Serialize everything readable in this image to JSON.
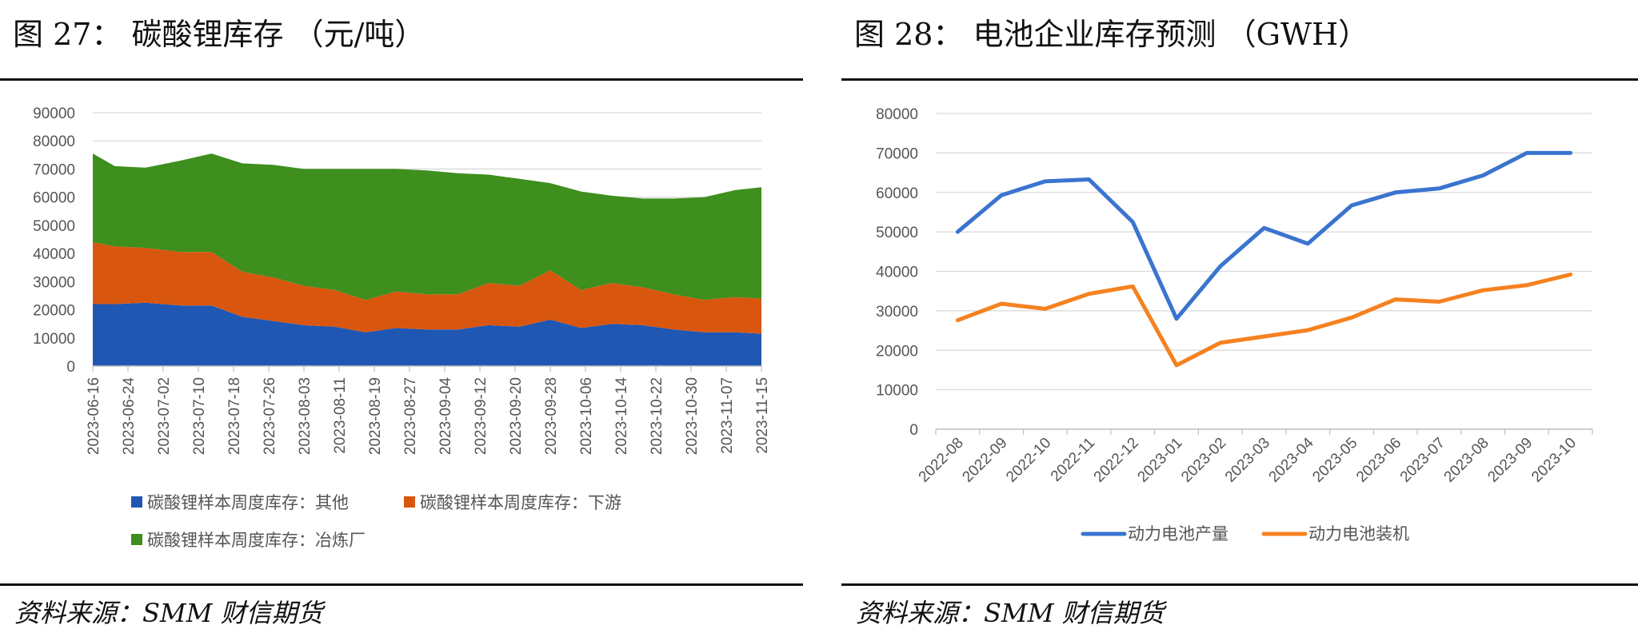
{
  "left": {
    "title": "图 27： 碳酸锂库存 （元/吨）",
    "source": "资料来源：SMM 财信期货",
    "chart_data": {
      "type": "area",
      "stacked": true,
      "title": "碳酸锂库存 （元/吨）",
      "ylim": [
        0,
        90000
      ],
      "yticks": [
        0,
        10000,
        20000,
        30000,
        40000,
        50000,
        60000,
        70000,
        80000,
        90000
      ],
      "ytick_labels": [
        "0",
        "10000",
        "20000",
        "30000",
        "40000",
        "50000",
        "60000",
        "70000",
        "80000",
        "90000"
      ],
      "categories": [
        "2023-06-16",
        "2023-06-24",
        "2023-07-02",
        "2023-07-10",
        "2023-07-18",
        "2023-07-26",
        "2023-08-03",
        "2023-08-11",
        "2023-08-19",
        "2023-08-27",
        "2023-09-04",
        "2023-09-12",
        "2023-09-20",
        "2023-09-28",
        "2023-10-06",
        "2023-10-14",
        "2023-10-22",
        "2023-10-30",
        "2023-11-07",
        "2023-11-15"
      ],
      "x": [
        "2023-06-16",
        "2023-06-21",
        "2023-06-28",
        "2023-07-06",
        "2023-07-13",
        "2023-07-20",
        "2023-07-27",
        "2023-08-03",
        "2023-08-10",
        "2023-08-17",
        "2023-08-24",
        "2023-08-31",
        "2023-09-07",
        "2023-09-14",
        "2023-09-21",
        "2023-09-28",
        "2023-10-05",
        "2023-10-12",
        "2023-10-19",
        "2023-10-26",
        "2023-11-02",
        "2023-11-09",
        "2023-11-15"
      ],
      "series": [
        {
          "name": "碳酸锂样本周度库存：其他",
          "color": "#1f57b3",
          "values": [
            22000,
            22000,
            22500,
            21500,
            21500,
            17500,
            16000,
            14500,
            14000,
            12000,
            13500,
            13000,
            13000,
            14500,
            14000,
            16500,
            13500,
            15000,
            14500,
            13000,
            12000,
            12000,
            11500
          ]
        },
        {
          "name": "碳酸锂样本周度库存：下游",
          "color": "#d9560f",
          "values": [
            22000,
            20500,
            19500,
            19000,
            19000,
            16000,
            15500,
            14000,
            13000,
            11500,
            13000,
            12500,
            12500,
            15000,
            14500,
            17500,
            13500,
            14500,
            13500,
            12500,
            11500,
            12500,
            12500
          ]
        },
        {
          "name": "碳酸锂样本周度库存：冶炼厂",
          "color": "#3e8f1d",
          "values": [
            31500,
            28500,
            28500,
            32500,
            35000,
            38500,
            40000,
            41500,
            43000,
            46500,
            43500,
            44000,
            43000,
            38500,
            38000,
            31000,
            35000,
            31000,
            31500,
            34000,
            36500,
            38000,
            39500
          ]
        }
      ]
    }
  },
  "right": {
    "title": "图 28： 电池企业库存预测 （GWH）",
    "source": "资料来源：SMM 财信期货",
    "chart_data": {
      "type": "line",
      "title": "电池企业库存预测 （GWH）",
      "ylim": [
        0,
        80000
      ],
      "yticks": [
        0,
        10000,
        20000,
        30000,
        40000,
        50000,
        60000,
        70000,
        80000
      ],
      "ytick_labels": [
        "0",
        "10000",
        "20000",
        "30000",
        "40000",
        "50000",
        "60000",
        "70000",
        "80000"
      ],
      "categories": [
        "2022-08",
        "2022-09",
        "2022-10",
        "2022-11",
        "2022-12",
        "2023-01",
        "2023-02",
        "2023-03",
        "2023-04",
        "2023-05",
        "2023-06",
        "2023-07",
        "2023-08",
        "2023-09",
        "2023-10"
      ],
      "series": [
        {
          "name": "动力电池产量",
          "color": "#3a74cf",
          "values": [
            50000,
            59300,
            62800,
            63300,
            52500,
            28000,
            41300,
            51000,
            47000,
            56700,
            60000,
            61000,
            64300,
            70000,
            70000
          ]
        },
        {
          "name": "动力电池装机",
          "color": "#f58220",
          "values": [
            27600,
            31800,
            30500,
            34300,
            36200,
            16200,
            21900,
            23500,
            25100,
            28300,
            32900,
            32300,
            35200,
            36500,
            39200
          ]
        }
      ]
    }
  }
}
